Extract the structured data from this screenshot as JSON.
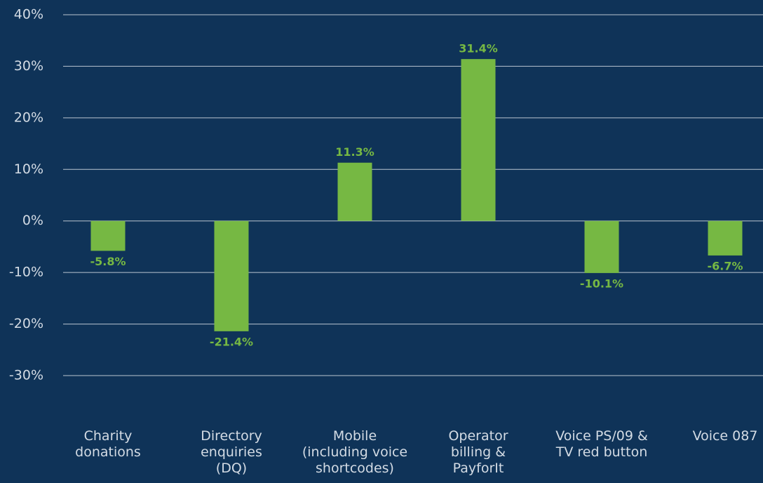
{
  "chart_data": {
    "type": "bar",
    "categories": [
      "Charity\ndonations",
      "Directory\nenquiries\n(DQ)",
      "Mobile\n(including voice\nshortcodes)",
      "Operator\nbilling &\nPayforIt",
      "Voice PS/09 &\nTV red button",
      "Voice 087"
    ],
    "values": [
      -5.8,
      -21.4,
      11.3,
      31.4,
      -10.1,
      -6.7
    ],
    "value_labels": [
      "-5.8%",
      "-21.4%",
      "11.3%",
      "31.4%",
      "-10.1%",
      "-6.7%"
    ],
    "color": "#76b843",
    "ylim": [
      -30,
      40
    ],
    "yticks": [
      {
        "value": -30,
        "label": "-30%"
      },
      {
        "value": -20,
        "label": "-20%"
      },
      {
        "value": -10,
        "label": "-10%"
      },
      {
        "value": 0,
        "label": "0%"
      },
      {
        "value": 10,
        "label": "10%"
      },
      {
        "value": 20,
        "label": "20%"
      },
      {
        "value": 30,
        "label": "30%"
      },
      {
        "value": 40,
        "label": "40%"
      }
    ],
    "grid": true
  }
}
